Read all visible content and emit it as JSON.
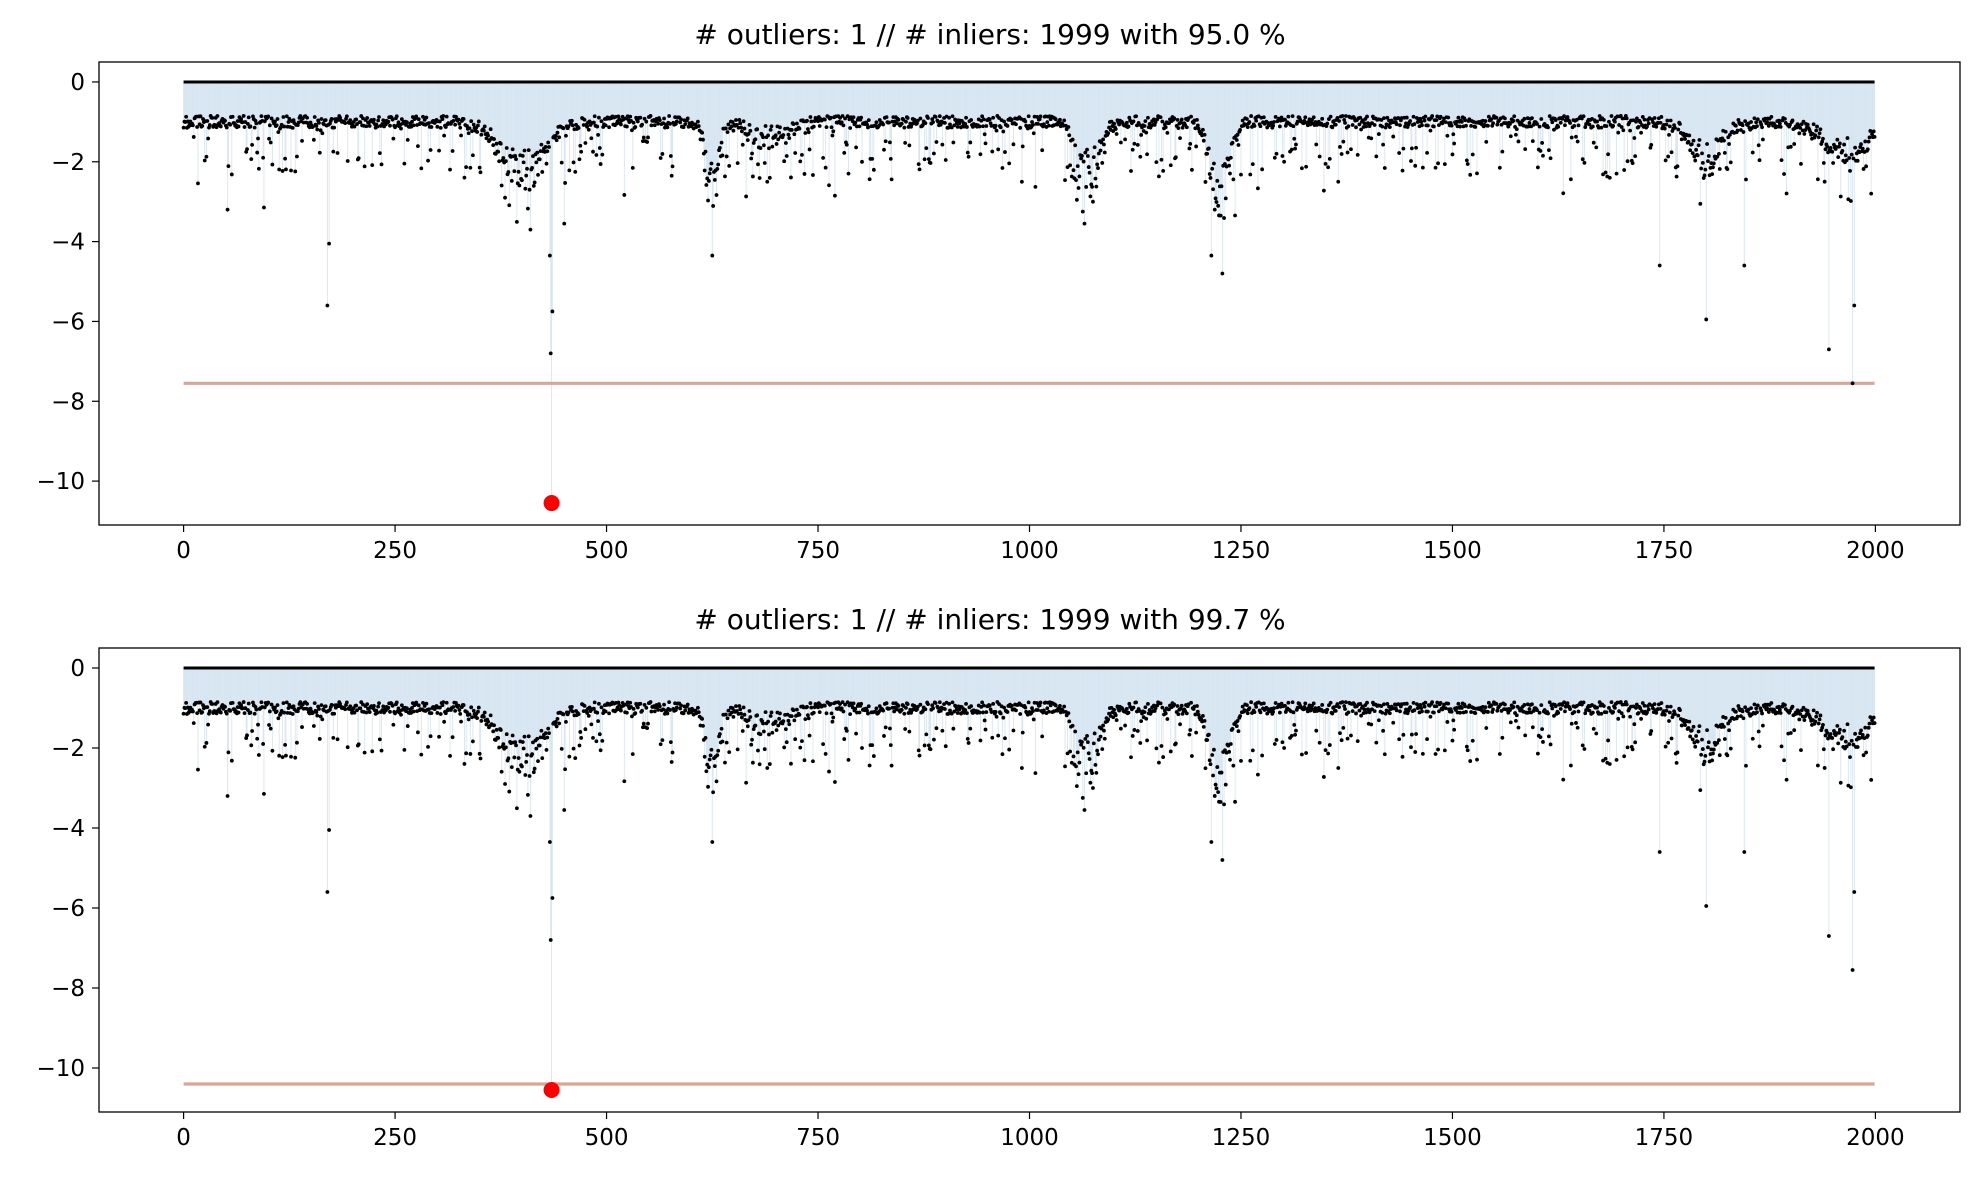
{
  "chart_data": [
    {
      "type": "scatter",
      "title": "# outliers: 1 // # inliers: 1999 with 95.0 %",
      "xlabel": "",
      "ylabel": "",
      "xlim": [
        -100,
        2100
      ],
      "ylim": [
        -11.1,
        0.5
      ],
      "xticks": [
        0,
        250,
        500,
        750,
        1000,
        1250,
        1500,
        1750,
        2000
      ],
      "yticks": [
        0,
        -2,
        -4,
        -6,
        -8,
        -10
      ],
      "grid": false,
      "n_points": 2000,
      "baseline_y": 0,
      "threshold_y": -7.55,
      "outliers": [
        {
          "x": 435,
          "y": -10.55
        }
      ],
      "inlier_dips": [
        {
          "x": 52,
          "y": -3.2
        },
        {
          "x": 170,
          "y": -5.6
        },
        {
          "x": 172,
          "y": -4.05
        },
        {
          "x": 380,
          "y": -2.9
        },
        {
          "x": 410,
          "y": -3.7
        },
        {
          "x": 433,
          "y": -4.35
        },
        {
          "x": 436,
          "y": -5.75
        },
        {
          "x": 434,
          "y": -6.8
        },
        {
          "x": 450,
          "y": -3.55
        },
        {
          "x": 625,
          "y": -4.35
        },
        {
          "x": 690,
          "y": -2.5
        },
        {
          "x": 770,
          "y": -2.85
        },
        {
          "x": 1065,
          "y": -3.55
        },
        {
          "x": 1075,
          "y": -3.0
        },
        {
          "x": 1215,
          "y": -4.35
        },
        {
          "x": 1228,
          "y": -4.8
        },
        {
          "x": 1745,
          "y": -4.6
        },
        {
          "x": 1800,
          "y": -5.95
        },
        {
          "x": 1845,
          "y": -4.6
        },
        {
          "x": 1945,
          "y": -6.7
        },
        {
          "x": 1973,
          "y": -7.55
        },
        {
          "x": 1975,
          "y": -5.6
        }
      ]
    },
    {
      "type": "scatter",
      "title": "# outliers: 1 // # inliers: 1999 with 99.7 %",
      "xlabel": "",
      "ylabel": "",
      "xlim": [
        -100,
        2100
      ],
      "ylim": [
        -11.1,
        0.5
      ],
      "xticks": [
        0,
        250,
        500,
        750,
        1000,
        1250,
        1500,
        1750,
        2000
      ],
      "yticks": [
        0,
        -2,
        -4,
        -6,
        -8,
        -10
      ],
      "grid": false,
      "n_points": 2000,
      "baseline_y": 0,
      "threshold_y": -10.4,
      "outliers": [
        {
          "x": 435,
          "y": -10.55
        }
      ],
      "inlier_dips": [
        {
          "x": 52,
          "y": -3.2
        },
        {
          "x": 170,
          "y": -5.6
        },
        {
          "x": 172,
          "y": -4.05
        },
        {
          "x": 380,
          "y": -2.9
        },
        {
          "x": 410,
          "y": -3.7
        },
        {
          "x": 433,
          "y": -4.35
        },
        {
          "x": 436,
          "y": -5.75
        },
        {
          "x": 434,
          "y": -6.8
        },
        {
          "x": 450,
          "y": -3.55
        },
        {
          "x": 625,
          "y": -4.35
        },
        {
          "x": 690,
          "y": -2.5
        },
        {
          "x": 770,
          "y": -2.85
        },
        {
          "x": 1065,
          "y": -3.55
        },
        {
          "x": 1075,
          "y": -3.0
        },
        {
          "x": 1215,
          "y": -4.35
        },
        {
          "x": 1228,
          "y": -4.8
        },
        {
          "x": 1745,
          "y": -4.6
        },
        {
          "x": 1800,
          "y": -5.95
        },
        {
          "x": 1845,
          "y": -4.6
        },
        {
          "x": 1945,
          "y": -6.7
        },
        {
          "x": 1973,
          "y": -7.55
        },
        {
          "x": 1975,
          "y": -5.6
        }
      ]
    }
  ],
  "colors": {
    "baseline": "#000000",
    "points": "#000000",
    "stems": "#c6dcec",
    "threshold": "#d6a697",
    "outlier": "#ff0000"
  }
}
